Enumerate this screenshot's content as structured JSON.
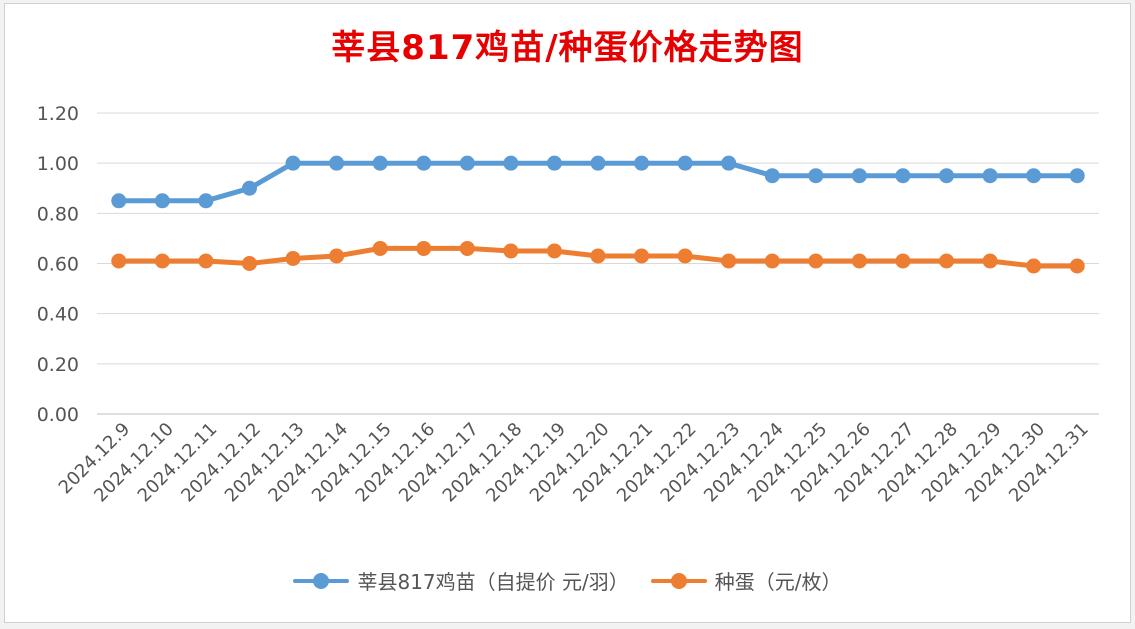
{
  "chart_data": {
    "type": "line",
    "title": "莘县817鸡苗/种蛋价格走势图",
    "x": [
      "2024.12.9",
      "2024.12.10",
      "2024.12.11",
      "2024.12.12",
      "2024.12.13",
      "2024.12.14",
      "2024.12.15",
      "2024.12.16",
      "2024.12.17",
      "2024.12.18",
      "2024.12.19",
      "2024.12.20",
      "2024.12.21",
      "2024.12.22",
      "2024.12.23",
      "2024.12.24",
      "2024.12.25",
      "2024.12.26",
      "2024.12.27",
      "2024.12.28",
      "2024.12.29",
      "2024.12.30",
      "2024.12.31"
    ],
    "yticks": [
      "0.00",
      "0.20",
      "0.40",
      "0.60",
      "0.80",
      "1.00",
      "1.20"
    ],
    "ylim": [
      0,
      1.2
    ],
    "grid": true,
    "legend_position": "bottom",
    "series": [
      {
        "name": "莘县817鸡苗（自提价 元/羽）",
        "color": "#5b9bd5",
        "values": [
          0.85,
          0.85,
          0.85,
          0.9,
          1.0,
          1.0,
          1.0,
          1.0,
          1.0,
          1.0,
          1.0,
          1.0,
          1.0,
          1.0,
          1.0,
          0.95,
          0.95,
          0.95,
          0.95,
          0.95,
          0.95,
          0.95,
          0.95
        ]
      },
      {
        "name": "种蛋（元/枚）",
        "color": "#ed7d31",
        "values": [
          0.61,
          0.61,
          0.61,
          0.6,
          0.62,
          0.63,
          0.66,
          0.66,
          0.66,
          0.65,
          0.65,
          0.63,
          0.63,
          0.63,
          0.61,
          0.61,
          0.61,
          0.61,
          0.61,
          0.61,
          0.61,
          0.59,
          0.59
        ]
      }
    ]
  }
}
